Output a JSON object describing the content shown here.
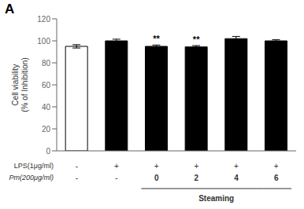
{
  "chart_data": {
    "type": "bar",
    "title": "A",
    "ylabel": "Cell viability\n(% of Inhibition)",
    "values": [
      95,
      100,
      95,
      94.5,
      102,
      100
    ],
    "errors": [
      1.5,
      1.5,
      1.2,
      1.2,
      2.0,
      1.0
    ],
    "colors": [
      "white",
      "black",
      "black",
      "black",
      "black",
      "black"
    ],
    "edge_color": "black",
    "significance": [
      null,
      null,
      "**",
      "**",
      null,
      null
    ],
    "ylim": [
      0,
      120
    ],
    "yticks": [
      0,
      20,
      40,
      60,
      80,
      100,
      120
    ],
    "rows": [
      {
        "label": "LPS(1μg/ml)",
        "values": [
          "-",
          "+",
          "+",
          "+",
          "+",
          "+"
        ]
      },
      {
        "label": "Pm(200μg/ml)",
        "values": [
          "-",
          "-",
          "0",
          "2",
          "4",
          "6"
        ]
      }
    ],
    "bracket": {
      "label": "Steaming",
      "from": 2,
      "to": 5
    }
  }
}
